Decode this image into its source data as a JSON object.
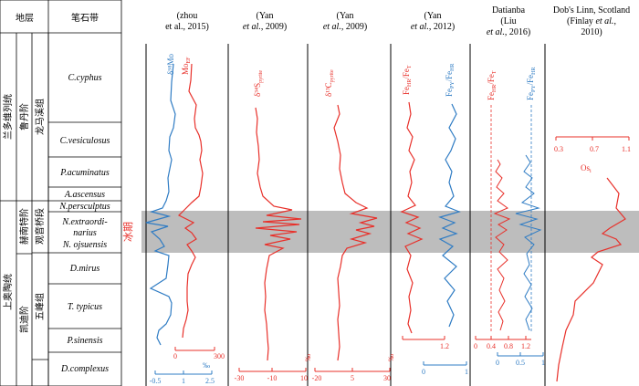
{
  "table": {
    "header_stratum": "地层",
    "header_zone": "笔石带",
    "systems": [
      "兰多维列统",
      "上奥陶统"
    ],
    "stages": [
      "鲁丹阶",
      "赫南特阶",
      "凯迪阶"
    ],
    "formations": [
      "龙马溪组",
      "观音桥段",
      "五峰组"
    ],
    "zones": [
      "C.cyphus",
      "C.vesiculosus",
      "P.acuminatus",
      "A.ascensus",
      "N.persculptus",
      "N.extraordi-",
      "narius",
      "N. ojsuensis",
      "D.mirus",
      "T. typicus",
      "P.sinensis",
      "D.complexus"
    ]
  },
  "glaciation_label": "冰期",
  "columns": [
    {
      "title1": "(zhou",
      "title2": "et al., 2015)",
      "label_d98": "δ⁹⁸Mo",
      "label_mo": "Mo",
      "mo_sub": "EF",
      "red_ticks": [
        "0",
        "300"
      ],
      "blue_ticks": [
        "-0.5",
        "1",
        "2.5"
      ],
      "unit": "‰"
    },
    {
      "title1": "(Yan",
      "title2": "et al., 2009)",
      "label": "δ³⁴S",
      "sub": "pyrite",
      "ticks": [
        "-30",
        "-10",
        "10"
      ],
      "unit": "‰"
    },
    {
      "title1": "(Yan",
      "title2": "et al., 2009)",
      "label": "δ¹³C",
      "sub": "pyrite",
      "ticks": [
        "-20",
        "5",
        "30"
      ],
      "unit": "‰"
    },
    {
      "title1": "(Yan",
      "title2": "et al., 2012)",
      "label_red": "Fe",
      "label_red_sub": "HR",
      "label_red_den": "/Fe",
      "label_red_den_sub": "T",
      "label_blue": "Fe",
      "label_blue_sub": "PY",
      "label_blue_den": "/Fe",
      "label_blue_den_sub": "HR",
      "red_ticks": [
        "1.2"
      ],
      "blue_ticks": [
        "0",
        "1"
      ]
    },
    {
      "title1": "Datianba",
      "title2": "(Liu",
      "title3": "et al., 2016)",
      "label_red": "Fe",
      "label_red_sub": "HR",
      "label_red_den": "/Fe",
      "label_red_den_sub": "T",
      "label_blue": "Fe",
      "label_blue_sub": "PY",
      "label_blue_den": "/Fe",
      "label_blue_den_sub": "HR",
      "red_ticks": [
        "0",
        "0.4",
        "0.8",
        "1.2"
      ],
      "blue_ticks": [
        "0",
        "0.5",
        "1"
      ]
    },
    {
      "title1": "Dob's Linn, Scotland",
      "title2": "(Finlay et al.,",
      "title3": "2010)",
      "label": "Os",
      "sub": "i",
      "ticks": [
        "0.3",
        "0.7",
        "1.1"
      ]
    }
  ],
  "colors": {
    "red": "#e8302a",
    "blue": "#2f7cc4",
    "band": "#bdbdbd"
  }
}
